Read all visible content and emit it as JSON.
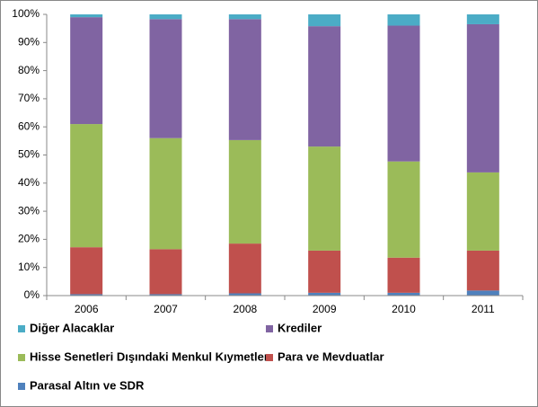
{
  "chart_data": {
    "type": "stacked-bar-100",
    "categories": [
      "2006",
      "2007",
      "2008",
      "2009",
      "2010",
      "2011"
    ],
    "series": [
      {
        "name": "Diğer Alacaklar",
        "color": "#4bacc6",
        "values": [
          1,
          1.7,
          1.7,
          4.2,
          4,
          3.5
        ]
      },
      {
        "name": "Krediler",
        "color": "#8064a2",
        "values": [
          38,
          42.3,
          43,
          42.8,
          48.3,
          52.7
        ]
      },
      {
        "name": "Hisse Senetleri Dışındaki Menkul Kıymetler",
        "color": "#9bbb59",
        "values": [
          43.8,
          39.5,
          36.8,
          37,
          34.2,
          27.8
        ]
      },
      {
        "name": "Para ve Mevduatlar",
        "color": "#c0504d",
        "values": [
          16.7,
          16,
          17.7,
          15,
          12.5,
          14.2
        ]
      },
      {
        "name": "Parasal Altın ve SDR",
        "color": "#4f81bd",
        "values": [
          0.5,
          0.5,
          0.8,
          1,
          1,
          1.8
        ]
      }
    ],
    "ylim": [
      0,
      100
    ],
    "yticks": [
      {
        "value": 0,
        "label": "0%"
      },
      {
        "value": 10,
        "label": "10%"
      },
      {
        "value": 20,
        "label": "20%"
      },
      {
        "value": 30,
        "label": "30%"
      },
      {
        "value": 40,
        "label": "40%"
      },
      {
        "value": 50,
        "label": "50%"
      },
      {
        "value": 60,
        "label": "60%"
      },
      {
        "value": 70,
        "label": "70%"
      },
      {
        "value": 80,
        "label": "80%"
      },
      {
        "value": 90,
        "label": "90%"
      },
      {
        "value": 100,
        "label": "100%"
      }
    ]
  }
}
